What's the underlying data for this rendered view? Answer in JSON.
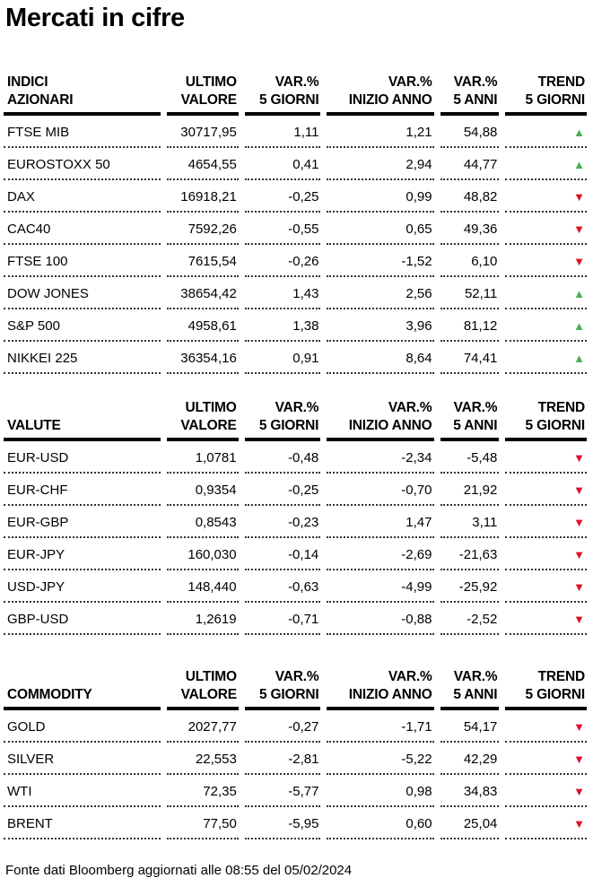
{
  "title": "Mercati in cifre",
  "colors": {
    "up": "#4caf50",
    "down": "#e0102a"
  },
  "headers": {
    "ultimo": [
      "ULTIMO",
      "VALORE"
    ],
    "var5g": [
      "VAR.%",
      "5 GIORNI"
    ],
    "varanno": [
      "VAR.%",
      "INIZIO ANNO"
    ],
    "var5a": [
      "VAR.%",
      "5 ANNI"
    ],
    "trend": [
      "TREND",
      "5 GIORNI"
    ]
  },
  "tables": [
    {
      "title": [
        "INDICI",
        "AZIONARI"
      ],
      "rows": [
        [
          "FTSE MIB",
          "30717,95",
          "1,11",
          "1,21",
          "54,88",
          "up"
        ],
        [
          "EUROSTOXX 50",
          "4654,55",
          "0,41",
          "2,94",
          "44,77",
          "up"
        ],
        [
          "DAX",
          "16918,21",
          "-0,25",
          "0,99",
          "48,82",
          "down"
        ],
        [
          "CAC40",
          "7592,26",
          "-0,55",
          "0,65",
          "49,36",
          "down"
        ],
        [
          "FTSE 100",
          "7615,54",
          "-0,26",
          "-1,52",
          "6,10",
          "down"
        ],
        [
          "DOW JONES",
          "38654,42",
          "1,43",
          "2,56",
          "52,11",
          "up"
        ],
        [
          "S&P 500",
          "4958,61",
          "1,38",
          "3,96",
          "81,12",
          "up"
        ],
        [
          "NIKKEI 225",
          "36354,16",
          "0,91",
          "8,64",
          "74,41",
          "up"
        ]
      ]
    },
    {
      "title": [
        "",
        "VALUTE"
      ],
      "rows": [
        [
          "EUR-USD",
          "1,0781",
          "-0,48",
          "-2,34",
          "-5,48",
          "down"
        ],
        [
          "EUR-CHF",
          "0,9354",
          "-0,25",
          "-0,70",
          "21,92",
          "down"
        ],
        [
          "EUR-GBP",
          "0,8543",
          "-0,23",
          "1,47",
          "3,11",
          "down"
        ],
        [
          "EUR-JPY",
          "160,030",
          "-0,14",
          "-2,69",
          "-21,63",
          "down"
        ],
        [
          "USD-JPY",
          "148,440",
          "-0,63",
          "-4,99",
          "-25,92",
          "down"
        ],
        [
          "GBP-USD",
          "1,2619",
          "-0,71",
          "-0,88",
          "-2,52",
          "down"
        ]
      ]
    },
    {
      "title": [
        "",
        "COMMODITY"
      ],
      "rows": [
        [
          "GOLD",
          "2027,77",
          "-0,27",
          "-1,71",
          "54,17",
          "down"
        ],
        [
          "SILVER",
          "22,553",
          "-2,81",
          "-5,22",
          "42,29",
          "down"
        ],
        [
          "WTI",
          "72,35",
          "-5,77",
          "0,98",
          "34,83",
          "down"
        ],
        [
          "BRENT",
          "77,50",
          "-5,95",
          "0,60",
          "25,04",
          "down"
        ]
      ]
    }
  ],
  "source": "Fonte dati Bloomberg aggiornati alle 08:55 del 05/02/2024"
}
